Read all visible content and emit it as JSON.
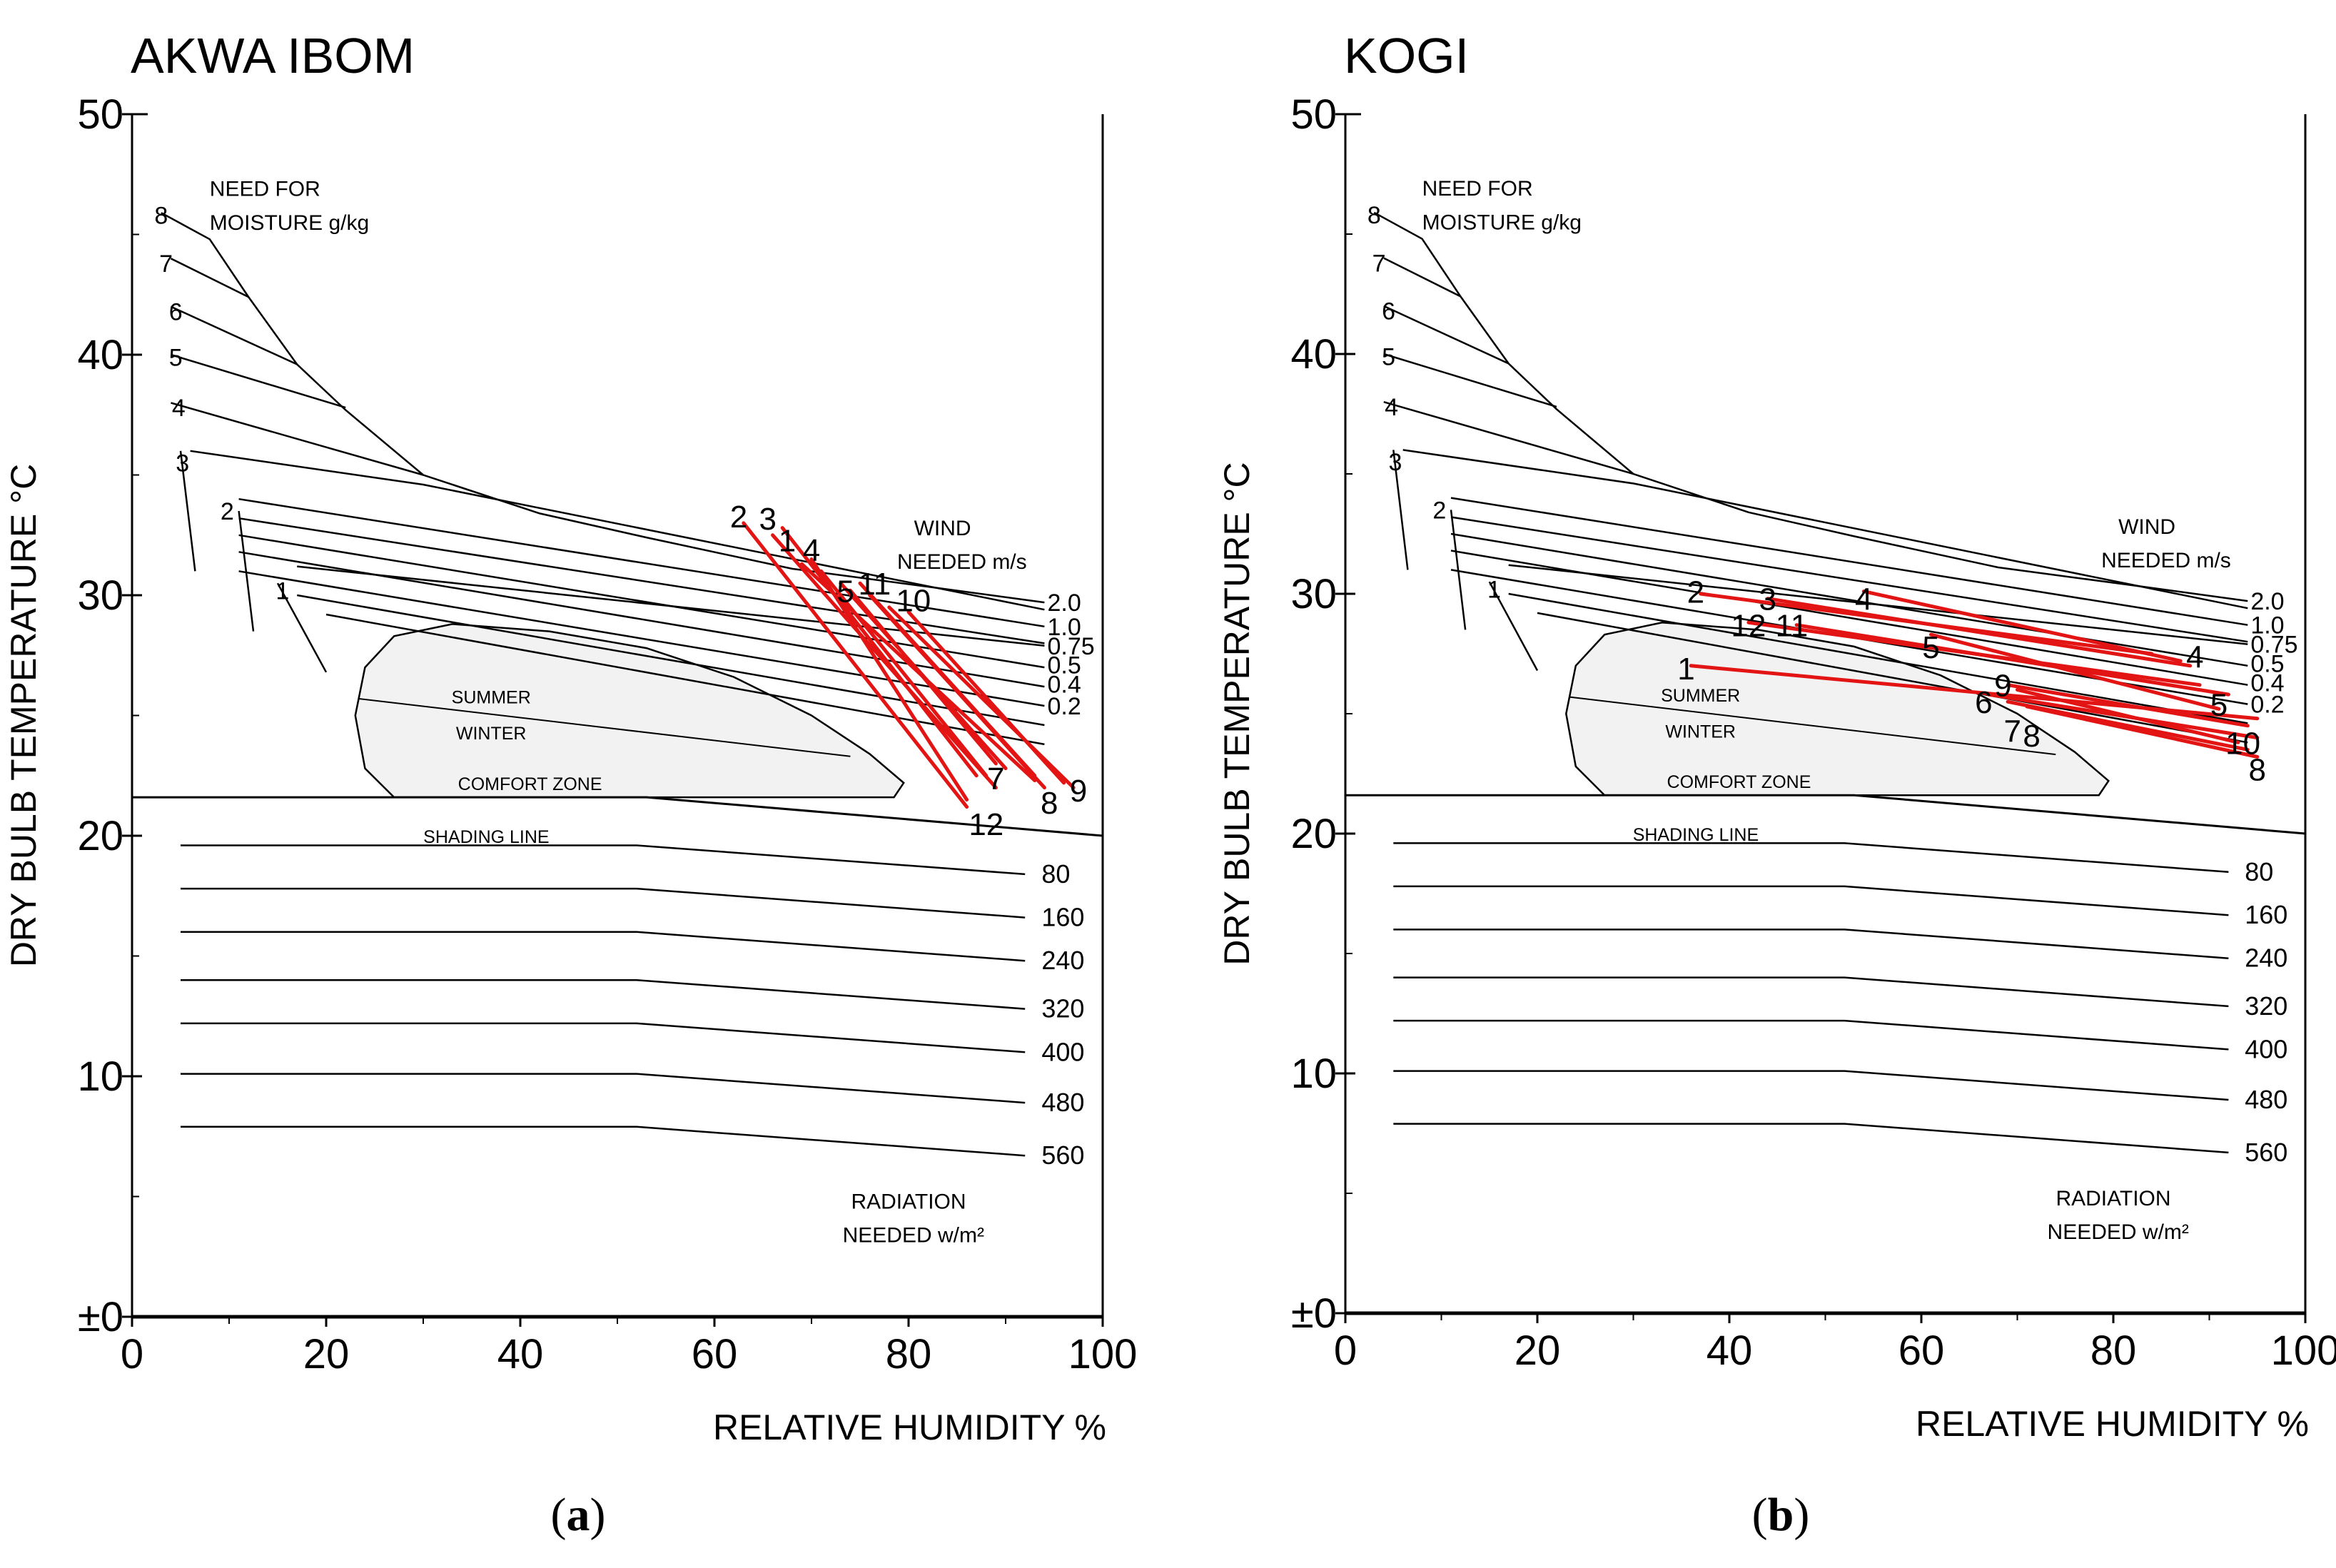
{
  "chart_data": [
    {
      "type": "line",
      "title": "AKWA IBOM",
      "panel_label": "a",
      "xlabel": "RELATIVE HUMIDITY %",
      "ylabel": "DRY BULB TEMPERATURE °C",
      "xlim": [
        0,
        100
      ],
      "ylim": [
        0,
        50
      ],
      "x_ticks": [
        "0",
        "20",
        "40",
        "60",
        "80",
        "100"
      ],
      "y_ticks": [
        "±0",
        "10",
        "20",
        "30",
        "40",
        "50"
      ],
      "annotations": {
        "moisture_title_1": "NEED FOR",
        "moisture_title_2": "MOISTURE  g/kg",
        "wind_title_1": "WIND",
        "wind_title_2": "NEEDED m/s",
        "radiation_title_1": "RADIATION",
        "radiation_title_2": "NEEDED w/m²",
        "summer": "SUMMER",
        "winter": "WINTER",
        "comfort_zone": "COMFORT ZONE",
        "shading_line": "SHADING LINE"
      },
      "moisture_labels": [
        "8",
        "7",
        "6",
        "5",
        "4",
        "3",
        "2",
        "1"
      ],
      "wind_labels": [
        "2.0",
        "1.0",
        "0.75",
        "0.5",
        "0.4",
        "0.2"
      ],
      "radiation_labels": [
        "80",
        "160",
        "240",
        "320",
        "400",
        "480",
        "560"
      ],
      "series": [
        {
          "name": "1",
          "x": [
            67,
            87
          ],
          "y": [
            32.8,
            22.5
          ]
        },
        {
          "name": "2",
          "x": [
            63,
            86
          ],
          "y": [
            33.0,
            21.2
          ]
        },
        {
          "name": "3",
          "x": [
            66,
            89
          ],
          "y": [
            32.5,
            22.0
          ]
        },
        {
          "name": "4",
          "x": [
            69,
            93
          ],
          "y": [
            31.3,
            22.3
          ]
        },
        {
          "name": "5",
          "x": [
            73,
            90
          ],
          "y": [
            30.5,
            22.8
          ]
        },
        {
          "name": "6",
          "x": [
            71,
            88
          ],
          "y": [
            31.0,
            22.5
          ]
        },
        {
          "name": "7",
          "x": [
            74,
            89
          ],
          "y": [
            30.2,
            23.0
          ]
        },
        {
          "name": "8",
          "x": [
            76,
            94
          ],
          "y": [
            30.0,
            22.0
          ]
        },
        {
          "name": "9",
          "x": [
            78,
            97
          ],
          "y": [
            29.5,
            22.0
          ]
        },
        {
          "name": "10",
          "x": [
            80,
            96
          ],
          "y": [
            29.3,
            22.2
          ]
        },
        {
          "name": "11",
          "x": [
            75,
            93
          ],
          "y": [
            30.5,
            22.5
          ]
        },
        {
          "name": "12",
          "x": [
            70,
            86
          ],
          "y": [
            31.5,
            21.5
          ]
        }
      ],
      "series_labels": [
        {
          "text": "2",
          "x": 62.5,
          "y": 33.3
        },
        {
          "text": "3",
          "x": 65.5,
          "y": 33.2
        },
        {
          "text": "1",
          "x": 67.5,
          "y": 32.3
        },
        {
          "text": "4",
          "x": 70,
          "y": 31.9
        },
        {
          "text": "5",
          "x": 73.5,
          "y": 30.2
        },
        {
          "text": "11",
          "x": 76.5,
          "y": 30.5
        },
        {
          "text": "10",
          "x": 80.5,
          "y": 29.8
        },
        {
          "text": "7",
          "x": 89,
          "y": 22.4
        },
        {
          "text": "9",
          "x": 97.5,
          "y": 21.9
        },
        {
          "text": "8",
          "x": 94.5,
          "y": 21.4
        },
        {
          "text": "12",
          "x": 88,
          "y": 20.5
        }
      ]
    },
    {
      "type": "line",
      "title": "KOGI",
      "panel_label": "b",
      "xlabel": "RELATIVE HUMIDITY %",
      "ylabel": "DRY BULB TEMPERATURE °C",
      "xlim": [
        0,
        100
      ],
      "ylim": [
        0,
        50
      ],
      "x_ticks": [
        "0",
        "20",
        "40",
        "60",
        "80",
        "100"
      ],
      "y_ticks": [
        "±0",
        "10",
        "20",
        "30",
        "40",
        "50"
      ],
      "annotations": {
        "moisture_title_1": "NEED FOR",
        "moisture_title_2": "MOISTURE  g/kg",
        "wind_title_1": "WIND",
        "wind_title_2": "NEEDED m/s",
        "radiation_title_1": "RADIATION",
        "radiation_title_2": "NEEDED w/m²",
        "summer": "SUMMER",
        "winter": "WINTER",
        "comfort_zone": "COMFORT ZONE",
        "shading_line": "SHADING LINE"
      },
      "moisture_labels": [
        "8",
        "7",
        "6",
        "5",
        "4",
        "3",
        "2",
        "1"
      ],
      "wind_labels": [
        "2.0",
        "1.0",
        "0.75",
        "0.5",
        "0.4",
        "0.2"
      ],
      "radiation_labels": [
        "80",
        "160",
        "240",
        "320",
        "400",
        "480",
        "560"
      ],
      "series": [
        {
          "name": "1",
          "x": [
            36,
            95
          ],
          "y": [
            27.0,
            24.8
          ]
        },
        {
          "name": "2",
          "x": [
            37,
            84
          ],
          "y": [
            30.0,
            27.5
          ]
        },
        {
          "name": "3",
          "x": [
            44,
            88
          ],
          "y": [
            29.8,
            27.0
          ]
        },
        {
          "name": "4",
          "x": [
            54,
            87
          ],
          "y": [
            30.1,
            27.2
          ]
        },
        {
          "name": "5",
          "x": [
            61,
            91
          ],
          "y": [
            28.3,
            25.2
          ]
        },
        {
          "name": "6",
          "x": [
            67,
            95
          ],
          "y": [
            25.8,
            24.0
          ]
        },
        {
          "name": "7",
          "x": [
            69,
            94
          ],
          "y": [
            25.5,
            23.5
          ]
        },
        {
          "name": "8",
          "x": [
            71,
            95
          ],
          "y": [
            25.3,
            23.2
          ]
        },
        {
          "name": "9",
          "x": [
            69,
            94
          ],
          "y": [
            26.2,
            24.5
          ]
        },
        {
          "name": "10",
          "x": [
            70,
            93
          ],
          "y": [
            26.0,
            23.8
          ]
        },
        {
          "name": "11",
          "x": [
            47,
            92
          ],
          "y": [
            28.7,
            25.8
          ]
        },
        {
          "name": "12",
          "x": [
            42,
            89
          ],
          "y": [
            28.8,
            26.2
          ]
        }
      ],
      "series_labels": [
        {
          "text": "2",
          "x": 36.5,
          "y": 30.1
        },
        {
          "text": "3",
          "x": 44,
          "y": 29.8
        },
        {
          "text": "4",
          "x": 54,
          "y": 29.8
        },
        {
          "text": "12",
          "x": 42,
          "y": 28.7
        },
        {
          "text": "11",
          "x": 46.5,
          "y": 28.7
        },
        {
          "text": "5",
          "x": 61,
          "y": 27.8
        },
        {
          "text": "1",
          "x": 35.5,
          "y": 26.9
        },
        {
          "text": "9",
          "x": 68.5,
          "y": 26.2
        },
        {
          "text": "6",
          "x": 66.5,
          "y": 25.5
        },
        {
          "text": "7",
          "x": 69.5,
          "y": 24.3
        },
        {
          "text": "8",
          "x": 71.5,
          "y": 24.1
        },
        {
          "text": "4",
          "x": 88.5,
          "y": 27.4
        },
        {
          "text": "5",
          "x": 91,
          "y": 25.4
        },
        {
          "text": "10",
          "x": 93.5,
          "y": 23.8
        },
        {
          "text": "8",
          "x": 95,
          "y": 22.7
        }
      ]
    }
  ],
  "colors": {
    "axis": "#000000",
    "data": "#e31414",
    "comfort_fill": "#f2f2f2"
  }
}
